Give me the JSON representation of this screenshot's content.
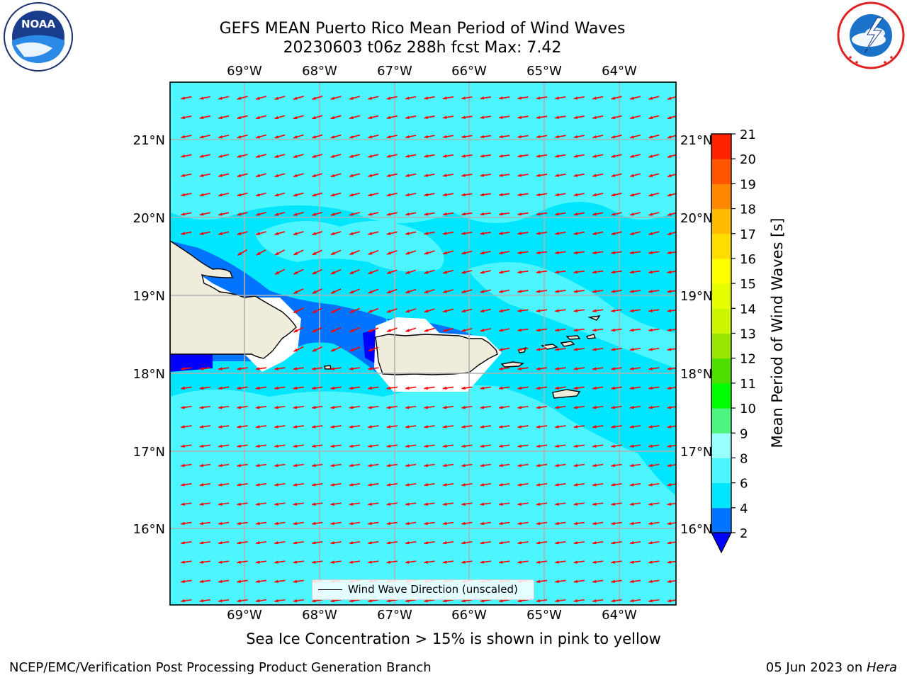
{
  "title": {
    "line1": "GEFS MEAN Puerto Rico Mean Period of Wind Waves",
    "line2": "20230603 t06z 288h fcst   Max: 7.42"
  },
  "logos": {
    "left": {
      "name": "NOAA",
      "text": "NOAA",
      "icon": "noaa-logo"
    },
    "right": {
      "name": "National Weather Service",
      "icon": "nws-logo"
    }
  },
  "map": {
    "lon_labels": [
      "69°W",
      "68°W",
      "67°W",
      "66°W",
      "65°W",
      "64°W"
    ],
    "lat_labels": [
      "21°N",
      "20°N",
      "19°N",
      "18°N",
      "17°N",
      "16°N"
    ],
    "vector_color": "#ff0000",
    "land_color": "#efecdc",
    "legend_text": "Wind Wave Direction (unscaled)"
  },
  "colorbar": {
    "label": "Mean Period of Wind Waves [s]",
    "ticks": [
      "2",
      "4",
      "6",
      "8",
      "9",
      "10",
      "11",
      "12",
      "13",
      "14",
      "15",
      "16",
      "17",
      "18",
      "19",
      "20",
      "21"
    ],
    "colors": [
      "#0000ff",
      "#0073ff",
      "#00e6ff",
      "#4df5ff",
      "#99ffff",
      "#4df580",
      "#00ff00",
      "#4ddf00",
      "#99e600",
      "#ccf500",
      "#e6ff00",
      "#ffff00",
      "#ffdd00",
      "#ffbb00",
      "#ff8800",
      "#ff5500",
      "#ff2200",
      "#ff0000"
    ]
  },
  "subtitle": "Sea Ice Concentration > 15% is shown in pink to yellow",
  "footer": {
    "left": "NCEP/EMC/Verification Post Processing Product Generation Branch",
    "right_prefix": "05 Jun 2023 on ",
    "right_italic": "Hera"
  }
}
